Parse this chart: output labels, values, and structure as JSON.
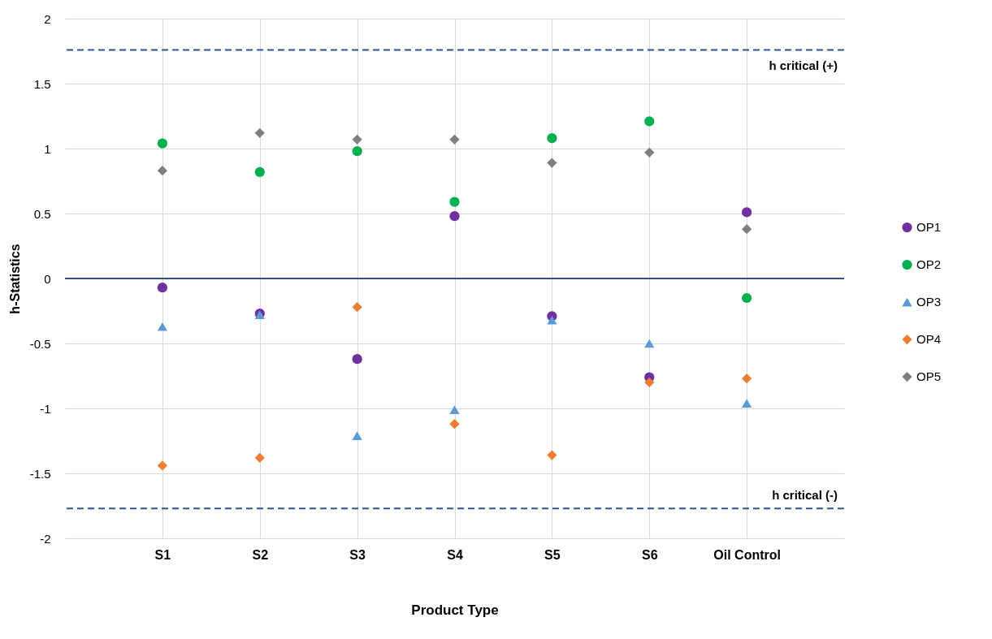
{
  "chart_data": {
    "type": "scatter",
    "xlabel": "Product Type",
    "ylabel": "h-Statistics",
    "categories": [
      "S1",
      "S2",
      "S3",
      "S4",
      "S5",
      "S6",
      "Oil Control"
    ],
    "series": [
      {
        "name": "OP1",
        "color": "#7030a0",
        "marker": "circle",
        "values": [
          -0.07,
          -0.27,
          -0.62,
          0.48,
          -0.29,
          -0.76,
          0.51
        ]
      },
      {
        "name": "OP2",
        "color": "#00b050",
        "marker": "circle",
        "values": [
          1.04,
          0.82,
          0.98,
          0.59,
          1.08,
          1.21,
          -0.15
        ]
      },
      {
        "name": "OP3",
        "color": "#5b9bd5",
        "marker": "triangle",
        "values": [
          -0.37,
          -0.28,
          -1.21,
          -1.01,
          -0.32,
          -0.5,
          -0.96
        ]
      },
      {
        "name": "OP4",
        "color": "#ed7d31",
        "marker": "diamond",
        "values": [
          -1.44,
          -1.38,
          -0.22,
          -1.12,
          -1.36,
          -0.8,
          -0.77
        ]
      },
      {
        "name": "OP5",
        "color": "#7f7f7f",
        "marker": "diamond",
        "values": [
          0.83,
          1.12,
          1.07,
          1.07,
          0.89,
          0.97,
          0.38
        ]
      }
    ],
    "ylim": [
      -2,
      2
    ],
    "yticks": [
      -2,
      -1.5,
      -1,
      -0.5,
      0,
      0.5,
      1,
      1.5,
      2
    ],
    "ref_lines": [
      {
        "axis": "y",
        "value": 1.76,
        "label": "h critical (+)",
        "color": "#2f5597",
        "line_style": "dashed"
      },
      {
        "axis": "y",
        "value": -1.77,
        "label": "h critical (-)",
        "color": "#2f5597",
        "line_style": "dashed"
      },
      {
        "axis": "y",
        "value": 0,
        "label": null,
        "color": "#2f4f7f",
        "line_style": "solid"
      }
    ],
    "grid": true,
    "legend": "right"
  }
}
